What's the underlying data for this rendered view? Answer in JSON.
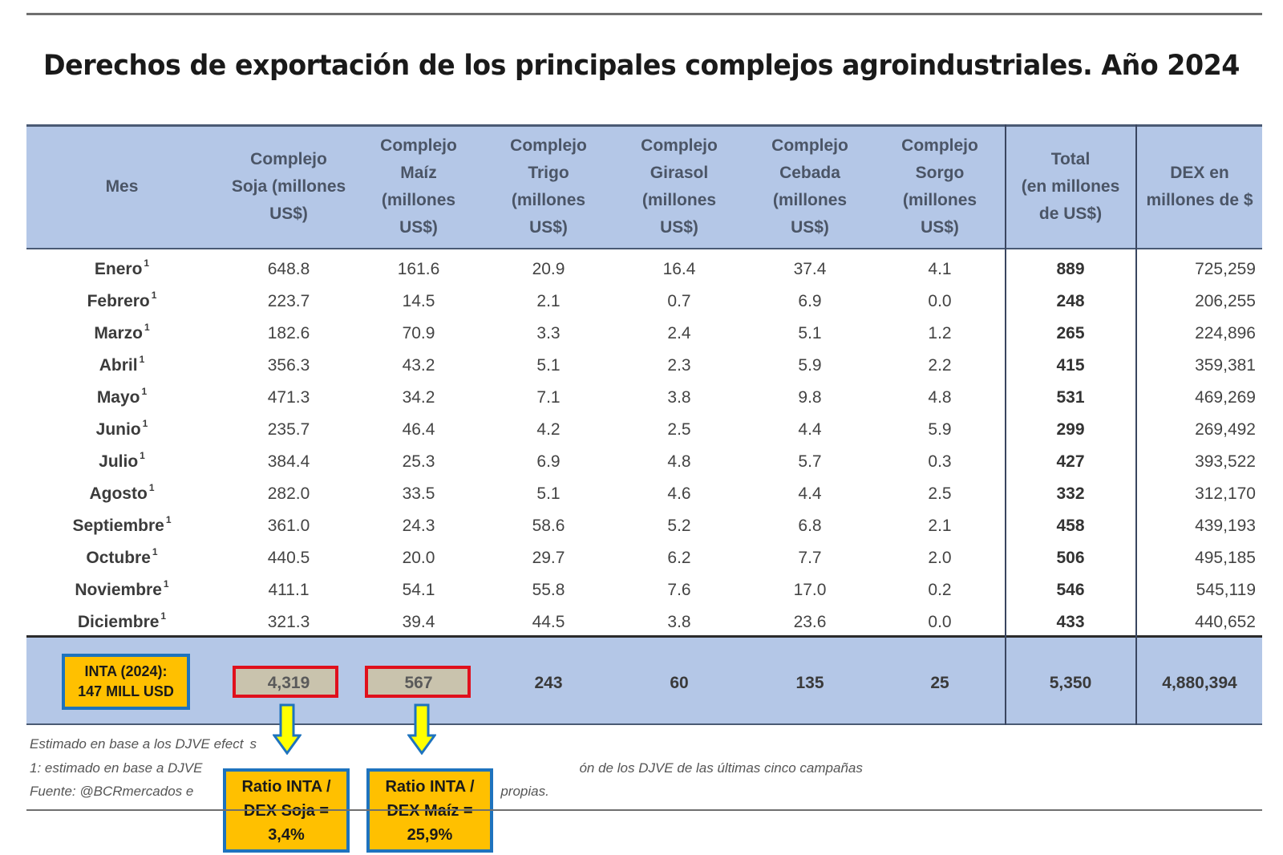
{
  "title": "Derechos de exportación de los principales complejos agroindustriales. Año 2024",
  "headers": [
    "Mes",
    "Complejo\nSoja (millones\nUS$)",
    "Complejo\nMaíz\n(millones\nUS$)",
    "Complejo\nTrigo\n(millones\nUS$)",
    "Complejo\nGirasol\n(millones\nUS$)",
    "Complejo\nCebada\n(millones\nUS$)",
    "Complejo\nSorgo\n(millones\nUS$)",
    "Total\n(en millones\nde US$)",
    "DEX en\nmillones de $"
  ],
  "footnote_marker": "1",
  "rows": [
    {
      "mes": "Enero",
      "soja": "648.8",
      "maiz": "161.6",
      "trigo": "20.9",
      "girasol": "16.4",
      "cebada": "37.4",
      "sorgo": "4.1",
      "total": "889",
      "dex": "725,259"
    },
    {
      "mes": "Febrero",
      "soja": "223.7",
      "maiz": "14.5",
      "trigo": "2.1",
      "girasol": "0.7",
      "cebada": "6.9",
      "sorgo": "0.0",
      "total": "248",
      "dex": "206,255"
    },
    {
      "mes": "Marzo",
      "soja": "182.6",
      "maiz": "70.9",
      "trigo": "3.3",
      "girasol": "2.4",
      "cebada": "5.1",
      "sorgo": "1.2",
      "total": "265",
      "dex": "224,896"
    },
    {
      "mes": "Abril",
      "soja": "356.3",
      "maiz": "43.2",
      "trigo": "5.1",
      "girasol": "2.3",
      "cebada": "5.9",
      "sorgo": "2.2",
      "total": "415",
      "dex": "359,381"
    },
    {
      "mes": "Mayo",
      "soja": "471.3",
      "maiz": "34.2",
      "trigo": "7.1",
      "girasol": "3.8",
      "cebada": "9.8",
      "sorgo": "4.8",
      "total": "531",
      "dex": "469,269"
    },
    {
      "mes": "Junio",
      "soja": "235.7",
      "maiz": "46.4",
      "trigo": "4.2",
      "girasol": "2.5",
      "cebada": "4.4",
      "sorgo": "5.9",
      "total": "299",
      "dex": "269,492"
    },
    {
      "mes": "Julio",
      "soja": "384.4",
      "maiz": "25.3",
      "trigo": "6.9",
      "girasol": "4.8",
      "cebada": "5.7",
      "sorgo": "0.3",
      "total": "427",
      "dex": "393,522"
    },
    {
      "mes": "Agosto",
      "soja": "282.0",
      "maiz": "33.5",
      "trigo": "5.1",
      "girasol": "4.6",
      "cebada": "4.4",
      "sorgo": "2.5",
      "total": "332",
      "dex": "312,170"
    },
    {
      "mes": "Septiembre",
      "soja": "361.0",
      "maiz": "24.3",
      "trigo": "58.6",
      "girasol": "5.2",
      "cebada": "6.8",
      "sorgo": "2.1",
      "total": "458",
      "dex": "439,193"
    },
    {
      "mes": "Octubre",
      "soja": "440.5",
      "maiz": "20.0",
      "trigo": "29.7",
      "girasol": "6.2",
      "cebada": "7.7",
      "sorgo": "2.0",
      "total": "506",
      "dex": "495,185"
    },
    {
      "mes": "Noviembre",
      "soja": "411.1",
      "maiz": "54.1",
      "trigo": "55.8",
      "girasol": "7.6",
      "cebada": "17.0",
      "sorgo": "0.2",
      "total": "546",
      "dex": "545,119"
    },
    {
      "mes": "Diciembre",
      "soja": "321.3",
      "maiz": "39.4",
      "trigo": "44.5",
      "girasol": "3.8",
      "cebada": "23.6",
      "sorgo": "0.0",
      "total": "433",
      "dex": "440,652"
    }
  ],
  "totals": {
    "soja": "4,319",
    "maiz": "567",
    "trigo": "243",
    "girasol": "60",
    "cebada": "135",
    "sorgo": "25",
    "total": "5,350",
    "dex": "4,880,394"
  },
  "notes": {
    "line1": "Estimado en base a los DJVE efect",
    "line1_tail": "s",
    "line2": "1: estimado en base a DJVE",
    "line2_tail": "ón de los DJVE de las últimas cinco campañas",
    "line3": "Fuente: @BCRmercados e",
    "line3_tail": "propias."
  },
  "annotations": {
    "inta_box": "INTA (2024):\n147 MILL USD",
    "ratio_soja": "Ratio INTA /\nDEX Soja =\n3,4%",
    "ratio_maiz": "Ratio INTA /\nDEX Maíz =\n25,9%"
  },
  "colors": {
    "header_bg": "#b4c7e7",
    "callout_fill": "#ffc000",
    "callout_border": "#1e73be",
    "highlight_border": "#e0101c",
    "arrow_fill": "#ffff00"
  }
}
